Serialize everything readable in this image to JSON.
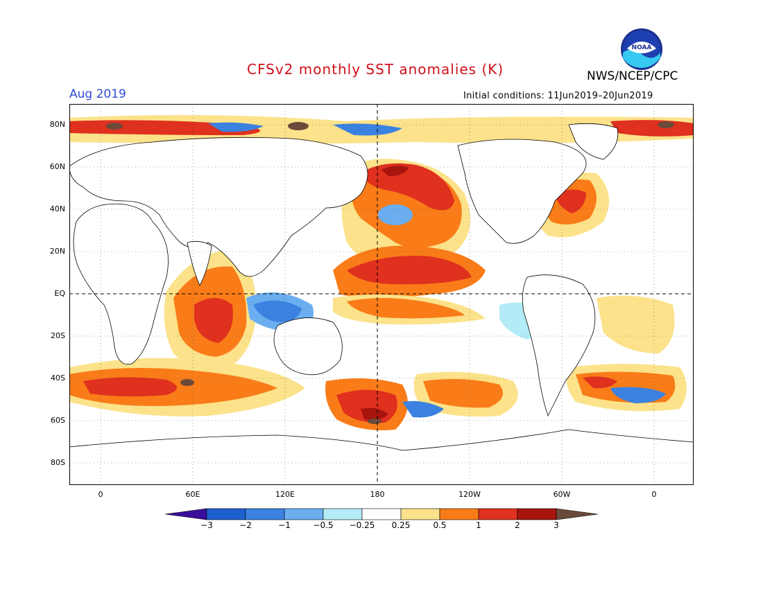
{
  "header": {
    "title": "CFSv2 monthly SST anomalies (K)",
    "agency": "NWS/NCEP/CPC",
    "valid_month": "Aug 2019",
    "initial_conditions": "Initial conditions: 11Jun2019–20Jun2019",
    "logo_text": "NOAA"
  },
  "map": {
    "projection": "cylindrical equidistant",
    "lon_range": [
      "20W",
      "20E (380)"
    ],
    "lat_range": [
      "90S",
      "90N"
    ],
    "center_meridian_marker": "180",
    "lat_labels": [
      "80N",
      "60N",
      "40N",
      "20N",
      "EQ",
      "20S",
      "40S",
      "60S",
      "80S"
    ],
    "lon_labels": [
      "0",
      "60E",
      "120E",
      "180",
      "120W",
      "60W",
      "0"
    ]
  },
  "legend": {
    "tick_labels": [
      "−3",
      "−2",
      "−1",
      "−0.5",
      "−0.25",
      "0.25",
      "0.5",
      "1",
      "2",
      "3"
    ],
    "colors": [
      "#3a0e9a",
      "#1e5fd0",
      "#3b82e0",
      "#6aaef0",
      "#b3ecf6",
      "#ffffff",
      "#fce28a",
      "#f97c18",
      "#e0301e",
      "#a8140e",
      "#6b4a3a"
    ]
  }
}
